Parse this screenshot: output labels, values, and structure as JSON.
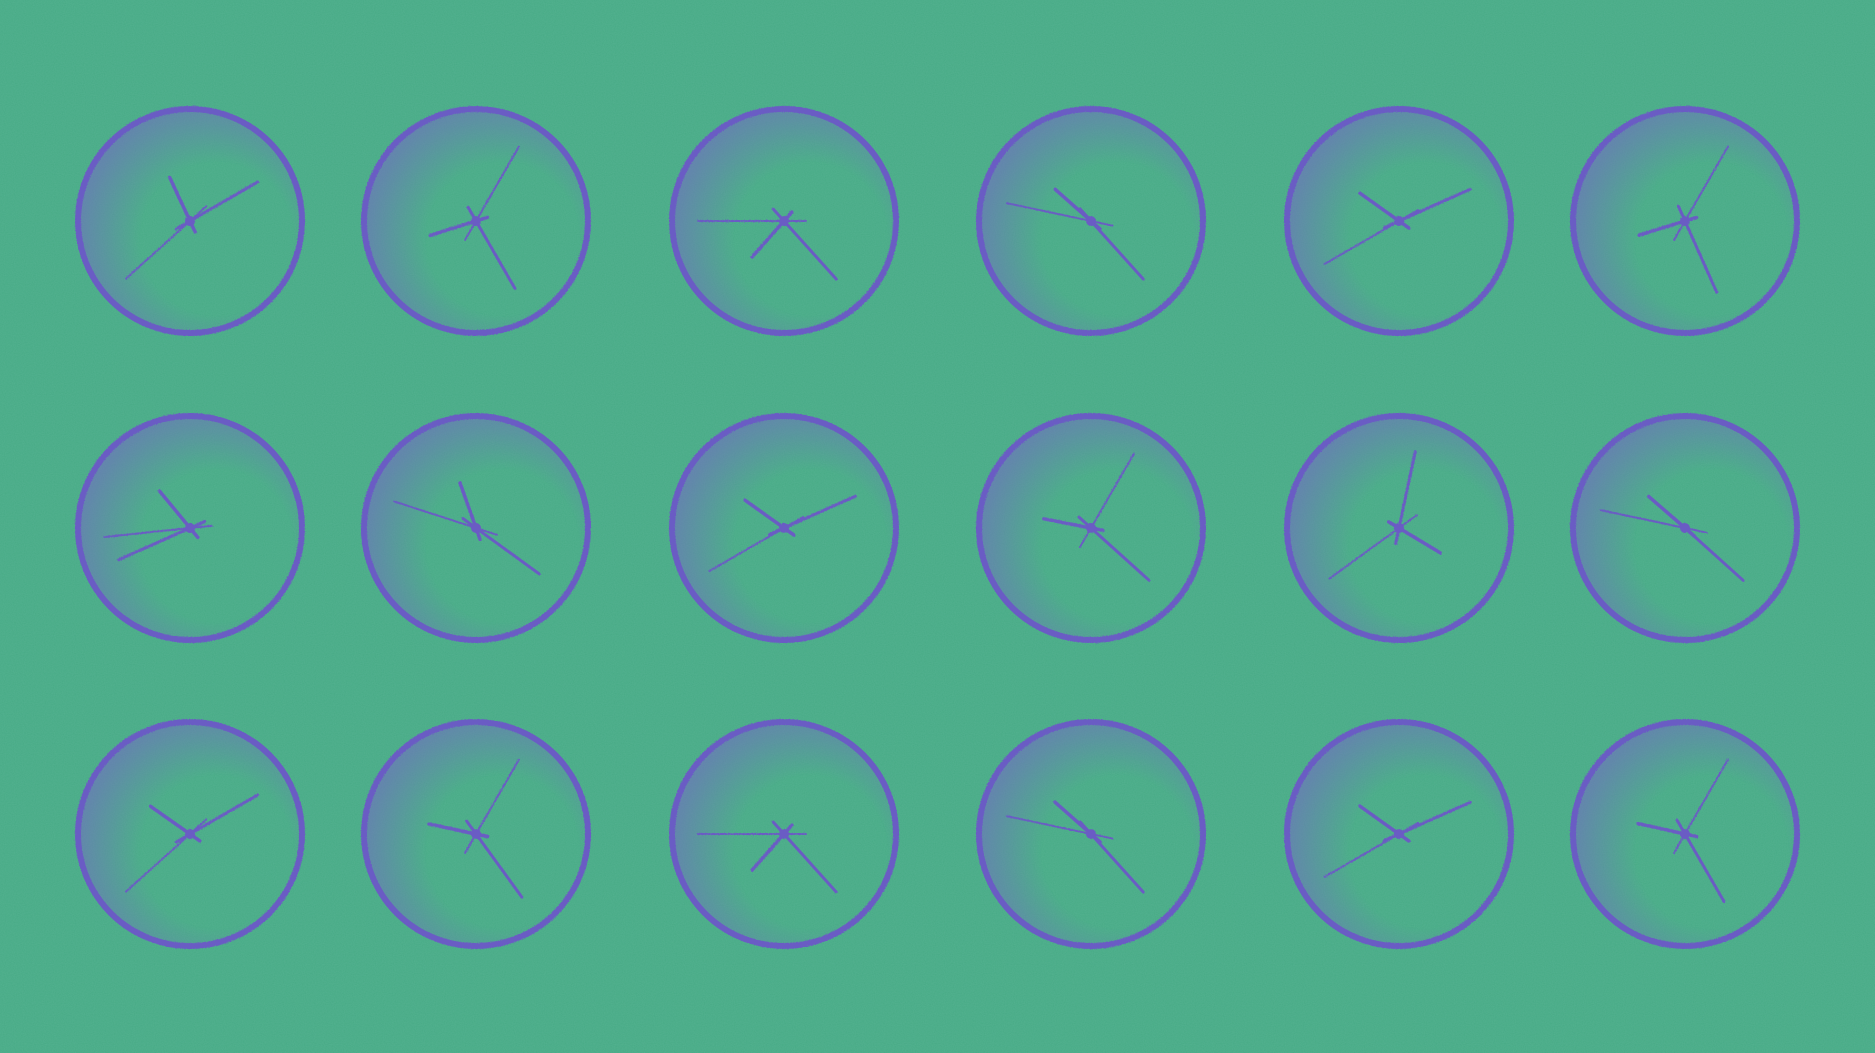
{
  "palette": {
    "background": "#48ab86",
    "clock_stroke": "#6b5bc4",
    "clock_shade": "#7565c8"
  },
  "icon": "analog-clock-icon",
  "clocks": [
    [
      {
        "hour": 11,
        "minute": 10,
        "second": 38
      },
      {
        "hour": 8,
        "minute": 25,
        "second": 5
      },
      {
        "hour": 7,
        "minute": 23,
        "second": 45
      },
      {
        "hour": 10,
        "minute": 23,
        "second": 47
      },
      {
        "hour": 10,
        "minute": 11,
        "second": 40
      },
      {
        "hour": 8,
        "minute": 26,
        "second": 5
      }
    ],
    [
      {
        "hour": 10,
        "minute": 41,
        "second": 44
      },
      {
        "hour": 11,
        "minute": 21,
        "second": 48
      },
      {
        "hour": 10,
        "minute": 11,
        "second": 40
      },
      {
        "hour": 9,
        "minute": 22,
        "second": 5
      },
      {
        "hour": 4,
        "minute": 2,
        "second": 39
      },
      {
        "hour": 10,
        "minute": 22,
        "second": 47
      }
    ],
    [
      {
        "hour": 10,
        "minute": 10,
        "second": 38
      },
      {
        "hour": 9,
        "minute": 24,
        "second": 5
      },
      {
        "hour": 7,
        "minute": 23,
        "second": 45
      },
      {
        "hour": 10,
        "minute": 23,
        "second": 47
      },
      {
        "hour": 10,
        "minute": 11,
        "second": 40
      },
      {
        "hour": 9,
        "minute": 25,
        "second": 5
      }
    ]
  ]
}
